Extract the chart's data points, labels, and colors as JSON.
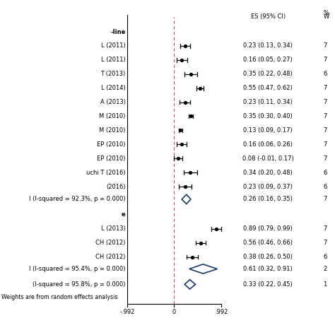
{
  "header_es": "ES (95% CI)",
  "header_w": "%\nW",
  "x_min": -0.992,
  "x_max": 0.992,
  "x_ticks": [
    -0.992,
    0,
    0.992
  ],
  "x_tick_labels": [
    "-.992",
    "0",
    ".992"
  ],
  "group1_header": "-line",
  "group1_studies": [
    {
      "label": "L (2011)",
      "es": 0.23,
      "ci_lo": 0.13,
      "ci_hi": 0.34,
      "text": "0.23 (0.13, 0.34)",
      "w": "7"
    },
    {
      "label": "L (2011)",
      "es": 0.16,
      "ci_lo": 0.05,
      "ci_hi": 0.27,
      "text": "0.16 (0.05, 0.27)",
      "w": "7"
    },
    {
      "label": "T (2013)",
      "es": 0.35,
      "ci_lo": 0.22,
      "ci_hi": 0.48,
      "text": "0.35 (0.22, 0.48)",
      "w": "6"
    },
    {
      "label": "L (2014)",
      "es": 0.55,
      "ci_lo": 0.47,
      "ci_hi": 0.62,
      "text": "0.55 (0.47, 0.62)",
      "w": "7"
    },
    {
      "label": "A (2013)",
      "es": 0.23,
      "ci_lo": 0.11,
      "ci_hi": 0.34,
      "text": "0.23 (0.11, 0.34)",
      "w": "7"
    },
    {
      "label": "M (2010)",
      "es": 0.35,
      "ci_lo": 0.3,
      "ci_hi": 0.4,
      "text": "0.35 (0.30, 0.40)",
      "w": "7"
    },
    {
      "label": "M (2010)",
      "es": 0.13,
      "ci_lo": 0.09,
      "ci_hi": 0.17,
      "text": "0.13 (0.09, 0.17)",
      "w": "7"
    },
    {
      "label": "EP (2010)",
      "es": 0.16,
      "ci_lo": 0.06,
      "ci_hi": 0.26,
      "text": "0.16 (0.06, 0.26)",
      "w": "7"
    },
    {
      "label": "EP (2010)",
      "es": 0.08,
      "ci_lo": -0.01,
      "ci_hi": 0.17,
      "text": "0.08 (-0.01, 0.17)",
      "w": "7"
    },
    {
      "label": "uchi T (2016)",
      "es": 0.34,
      "ci_lo": 0.2,
      "ci_hi": 0.48,
      "text": "0.34 (0.20, 0.48)",
      "w": "6"
    },
    {
      "label": "(2016)",
      "es": 0.23,
      "ci_lo": 0.09,
      "ci_hi": 0.37,
      "text": "0.23 (0.09, 0.37)",
      "w": "6"
    }
  ],
  "group1_summary": {
    "label": "I (I-squared = 92.3%, p = 0.000)",
    "es": 0.26,
    "ci_lo": 0.16,
    "ci_hi": 0.35,
    "text": "0.26 (0.16, 0.35)",
    "w": "7"
  },
  "group2_header": "e",
  "group2_studies": [
    {
      "label": "L (2013)",
      "es": 0.89,
      "ci_lo": 0.79,
      "ci_hi": 0.99,
      "text": "0.89 (0.79, 0.99)",
      "w": "7"
    },
    {
      "label": "CH (2012)",
      "es": 0.56,
      "ci_lo": 0.46,
      "ci_hi": 0.66,
      "text": "0.56 (0.46, 0.66)",
      "w": "7"
    },
    {
      "label": "CH (2012)",
      "es": 0.38,
      "ci_lo": 0.26,
      "ci_hi": 0.5,
      "text": "0.38 (0.26, 0.50)",
      "w": "6"
    }
  ],
  "group2_summary": {
    "label": "I (I-squared = 95.4%, p = 0.000)",
    "es": 0.61,
    "ci_lo": 0.32,
    "ci_hi": 0.91,
    "text": "0.61 (0.32, 0.91)",
    "w": "2"
  },
  "overall_summary": {
    "label": "(I-squared = 95.8%, p = 0.000)",
    "es": 0.33,
    "ci_lo": 0.22,
    "ci_hi": 0.45,
    "text": "0.33 (0.22, 0.45)",
    "w": "1"
  },
  "footnote": "Weights are from random effects analysis",
  "diamond_color": "#1a3a6b",
  "ci_color": "#000000",
  "dashed_color": "#c0504d",
  "text_color": "#000000",
  "bg_color": "#ffffff",
  "font_size": 6.0,
  "label_font_size": 6.0
}
